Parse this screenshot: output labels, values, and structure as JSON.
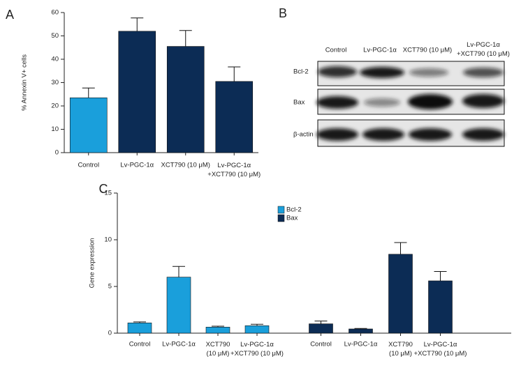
{
  "chart_data": [
    {
      "label": "A",
      "type": "bar",
      "ylabel": "% Annexin V+ cells",
      "categories": [
        "Control",
        "Lv-PGC-1α",
        "XCT790 (10 μM)",
        "Lv-PGC-1α\n+XCT790 (10 μM)"
      ],
      "values": [
        23.5,
        52,
        45.5,
        30.5
      ],
      "errors": [
        4.2,
        5.7,
        6.8,
        6.2
      ],
      "colors": [
        "#1a9fdb",
        "#0c2c55",
        "#0c2c55",
        "#0c2c55"
      ],
      "ylim": [
        0,
        60
      ],
      "yticks": [
        0,
        10,
        20,
        30,
        40,
        50,
        60
      ]
    },
    {
      "label": "C",
      "type": "grouped_bar",
      "ylabel": "Gene expression",
      "categories": [
        "Control",
        "Lv-PGC-1α",
        "XCT790\n(10 μM)",
        "Lv-PGC-1α\n+XCT790 (10 μM)"
      ],
      "series": [
        {
          "name": "Bcl-2",
          "color": "#1a9fdb",
          "values": [
            1.1,
            6.0,
            0.65,
            0.8
          ],
          "errors": [
            0.1,
            1.15,
            0.1,
            0.15
          ]
        },
        {
          "name": "Bax",
          "color": "#0c2c55",
          "values": [
            1.0,
            0.45,
            8.45,
            5.6
          ],
          "errors": [
            0.3,
            0.05,
            1.25,
            1.0
          ]
        }
      ],
      "ylim": [
        0,
        15
      ],
      "yticks": [
        0,
        5,
        10,
        15
      ]
    }
  ],
  "blot": {
    "label": "B",
    "columns": [
      "Control",
      "Lv-PGC-1α",
      "XCT790 (10 μM)",
      "Lv-PGC-1α\n+XCT790 (10 μM)"
    ],
    "rows": [
      "Bcl-2",
      "Bax",
      "β-actin"
    ]
  }
}
